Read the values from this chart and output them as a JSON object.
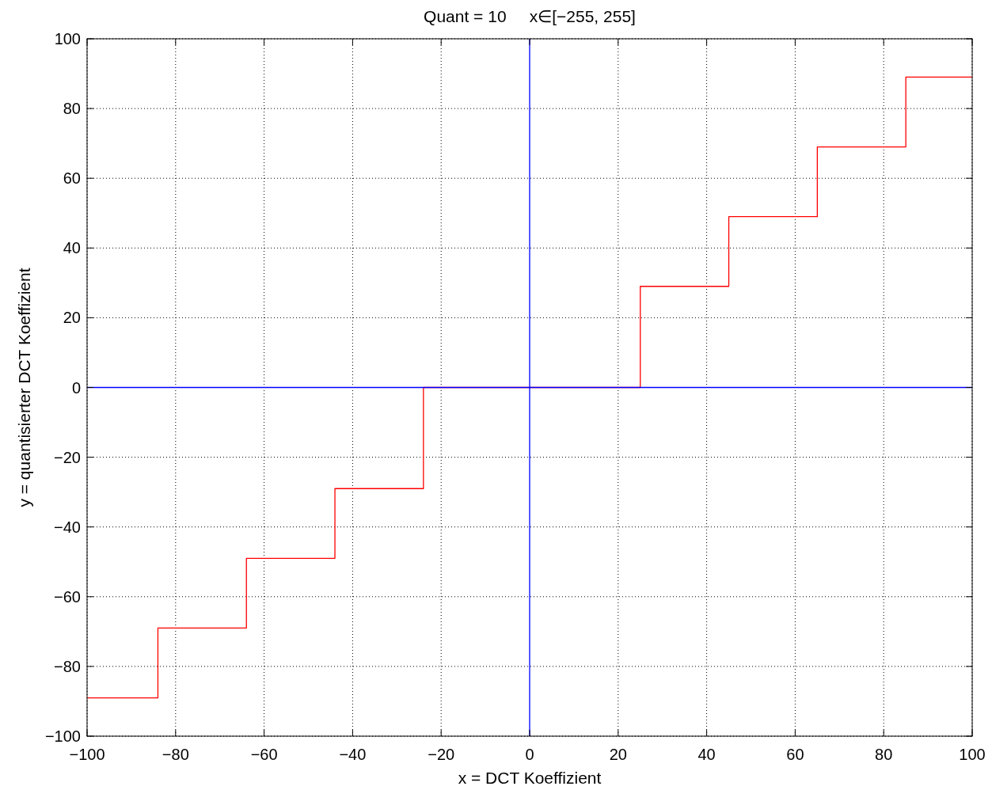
{
  "chart_data": {
    "type": "step",
    "title": "Quant = 10     x∈[−255, 255]",
    "xlabel": "x = DCT Koeffizient",
    "ylabel": "y = quantisierter DCT Koeffizient",
    "x": [
      -100,
      -84,
      -64,
      -44,
      -24,
      25,
      45,
      65,
      85,
      100
    ],
    "series": [
      {
        "color": "#ff0000",
        "values": [
          -89,
          -69,
          -49,
          -29,
          0,
          29,
          49,
          69,
          89,
          89
        ]
      },
      {
        "type": "line",
        "color": "#0000ff",
        "x": [
          -100,
          100
        ],
        "values": [
          0,
          0
        ]
      },
      {
        "type": "line",
        "color": "#0000ff",
        "x": [
          0,
          0
        ],
        "values": [
          -100,
          100
        ]
      }
    ],
    "xlim": [
      -100,
      100
    ],
    "ylim": [
      -100,
      100
    ],
    "xticks": [
      -100,
      -80,
      -60,
      -40,
      -20,
      0,
      20,
      40,
      60,
      80,
      100
    ],
    "yticks": [
      -100,
      -80,
      -60,
      -40,
      -20,
      0,
      20,
      40,
      60,
      80,
      100
    ],
    "grid": true,
    "marker": "none",
    "line_style": "solid"
  }
}
